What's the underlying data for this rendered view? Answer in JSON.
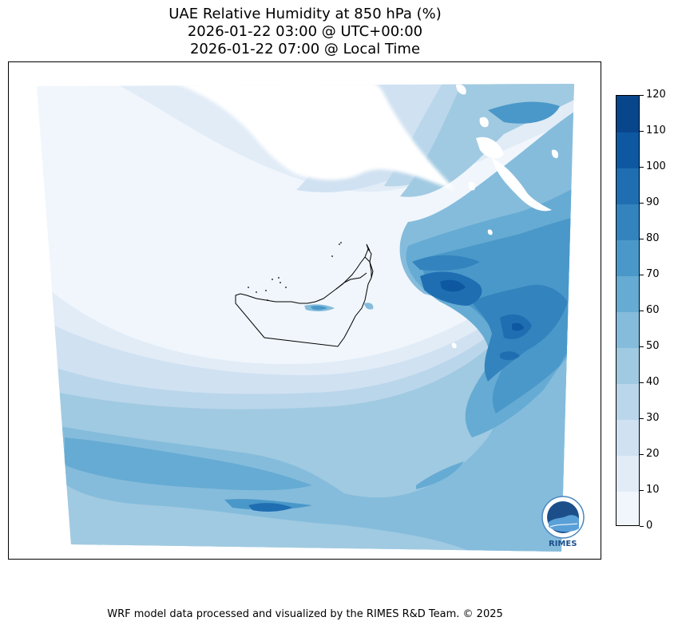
{
  "title": {
    "line1": "UAE Relative Humidity at 850 hPa (%)",
    "line2": "2026-01-22 03:00 @ UTC+00:00",
    "line3": "2026-01-22 07:00 @ Local Time"
  },
  "colorbar": {
    "ticks": [
      "0",
      "10",
      "20",
      "30",
      "40",
      "50",
      "60",
      "70",
      "80",
      "90",
      "100",
      "110",
      "120"
    ],
    "colors": [
      "#f0f6fc",
      "#e1ecf7",
      "#d0e1f2",
      "#bad6eb",
      "#a0cae1",
      "#85bcdc",
      "#66abd3",
      "#4a98c9",
      "#3383be",
      "#1f6eb2",
      "#0e58a2",
      "#08468b"
    ]
  },
  "logo": {
    "text": "RIMES"
  },
  "footer": {
    "credit": "WRF model data processed and visualized by the RIMES R&D Team. © 2025"
  }
}
